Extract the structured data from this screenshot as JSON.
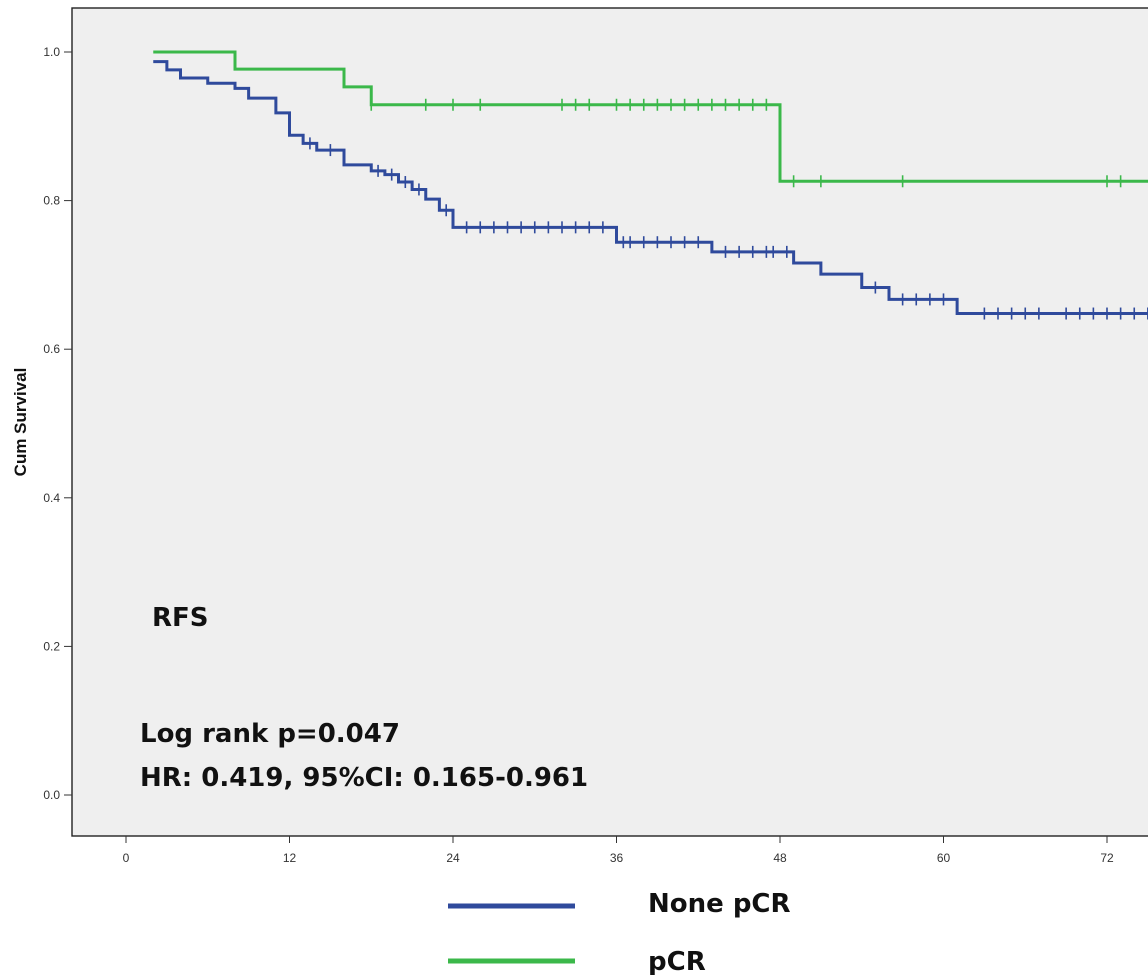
{
  "chart_data": {
    "type": "line",
    "subtype": "kaplan-meier step",
    "xlabel": "",
    "ylabel": "Cum Survival",
    "xlim": [
      0,
      78
    ],
    "ylim": [
      0,
      1.0
    ],
    "x_ticks": [
      "0",
      "12",
      "24",
      "36",
      "48",
      "60",
      "72"
    ],
    "y_ticks": [
      "0.0",
      "0.2",
      "0.4",
      "0.6",
      "0.8",
      "1.0"
    ],
    "grid": false,
    "plot_background": "#efefef",
    "annotations": {
      "label": "RFS",
      "logrank": "Log rank p=0.047",
      "hr": "HR: 0.419, 95%CI: 0.165-0.961"
    },
    "legend_position": "bottom",
    "series": [
      {
        "name": "None pCR",
        "color": "#2f4a9c",
        "steps": [
          [
            2,
            0.987
          ],
          [
            3,
            0.976
          ],
          [
            4,
            0.965
          ],
          [
            6,
            0.958
          ],
          [
            8,
            0.951
          ],
          [
            9,
            0.938
          ],
          [
            11,
            0.918
          ],
          [
            12,
            0.888
          ],
          [
            13,
            0.877
          ],
          [
            14,
            0.868
          ],
          [
            16,
            0.848
          ],
          [
            18,
            0.84
          ],
          [
            19,
            0.835
          ],
          [
            20,
            0.825
          ],
          [
            21,
            0.815
          ],
          [
            22,
            0.802
          ],
          [
            23,
            0.787
          ],
          [
            24,
            0.764
          ],
          [
            36,
            0.744
          ],
          [
            43,
            0.731
          ],
          [
            49,
            0.716
          ],
          [
            51,
            0.701
          ],
          [
            54,
            0.683
          ],
          [
            56,
            0.667
          ],
          [
            61,
            0.648
          ],
          [
            80,
            0.648
          ]
        ],
        "censor_times": [
          13.5,
          15,
          18.5,
          19.5,
          20.5,
          21.5,
          23.5,
          25,
          26,
          27,
          28,
          29,
          30,
          31,
          32,
          33,
          34,
          35,
          36.5,
          37,
          38,
          39,
          40,
          41,
          42,
          44,
          45,
          46,
          47,
          47.5,
          48.5,
          55,
          57,
          58,
          59,
          60,
          63,
          64,
          65,
          66,
          67,
          69,
          70,
          71,
          72,
          73,
          74,
          75,
          76
        ]
      },
      {
        "name": "pCR",
        "color": "#3bb84a",
        "steps": [
          [
            2,
            1.0
          ],
          [
            8,
            0.977
          ],
          [
            16,
            0.953
          ],
          [
            18,
            0.929
          ],
          [
            48,
            0.826
          ],
          [
            80,
            0.826
          ]
        ],
        "censor_times": [
          18,
          22,
          24,
          26,
          32,
          33,
          34,
          36,
          37,
          38,
          39,
          40,
          41,
          42,
          43,
          44,
          45,
          46,
          47,
          49,
          51,
          57,
          72,
          73
        ]
      }
    ]
  }
}
